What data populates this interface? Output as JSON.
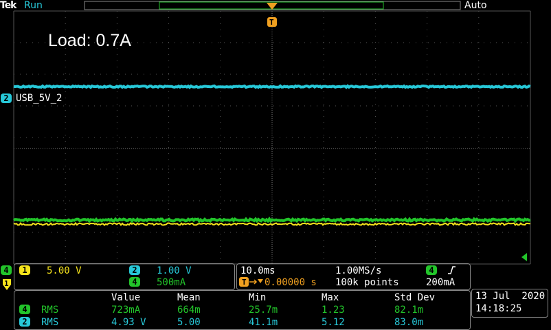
{
  "header": {
    "brand": "Tek",
    "status": "Run",
    "trigger_mode": "Auto",
    "trigger_marker": "T"
  },
  "annotation": "Load: 0.7A",
  "channel_markers": {
    "ch2": "2",
    "ch4": "4",
    "ch1": "1"
  },
  "trace_label": "USB_5V_2",
  "vertical": [
    {
      "channel": "1",
      "scale": "5.00 V"
    },
    {
      "channel": "2",
      "scale": "1.00 V"
    },
    {
      "channel": "4",
      "scale": "500mA"
    }
  ],
  "horizontal": {
    "time_scale": "10.0ms",
    "sample_rate": "1.00MS/s",
    "trigger_marker": "T",
    "position": "0.00000 s",
    "record_length": "100k points"
  },
  "trigger": {
    "channel": "4",
    "level": "200mA"
  },
  "measurements": {
    "headers": [
      "Value",
      "Mean",
      "Min",
      "Max",
      "Std Dev"
    ],
    "rows": [
      {
        "channel": "4",
        "type": "RMS",
        "cells": [
          "723mA",
          "664m",
          "25.7m",
          "1.23",
          "82.1m"
        ]
      },
      {
        "channel": "2",
        "type": "RMS",
        "cells": [
          "4.93 V",
          "5.00",
          "41.1m",
          "5.12",
          "83.0m"
        ]
      }
    ]
  },
  "datetime": {
    "date": "13 Jul  2020",
    "time": "14:18:25"
  }
}
